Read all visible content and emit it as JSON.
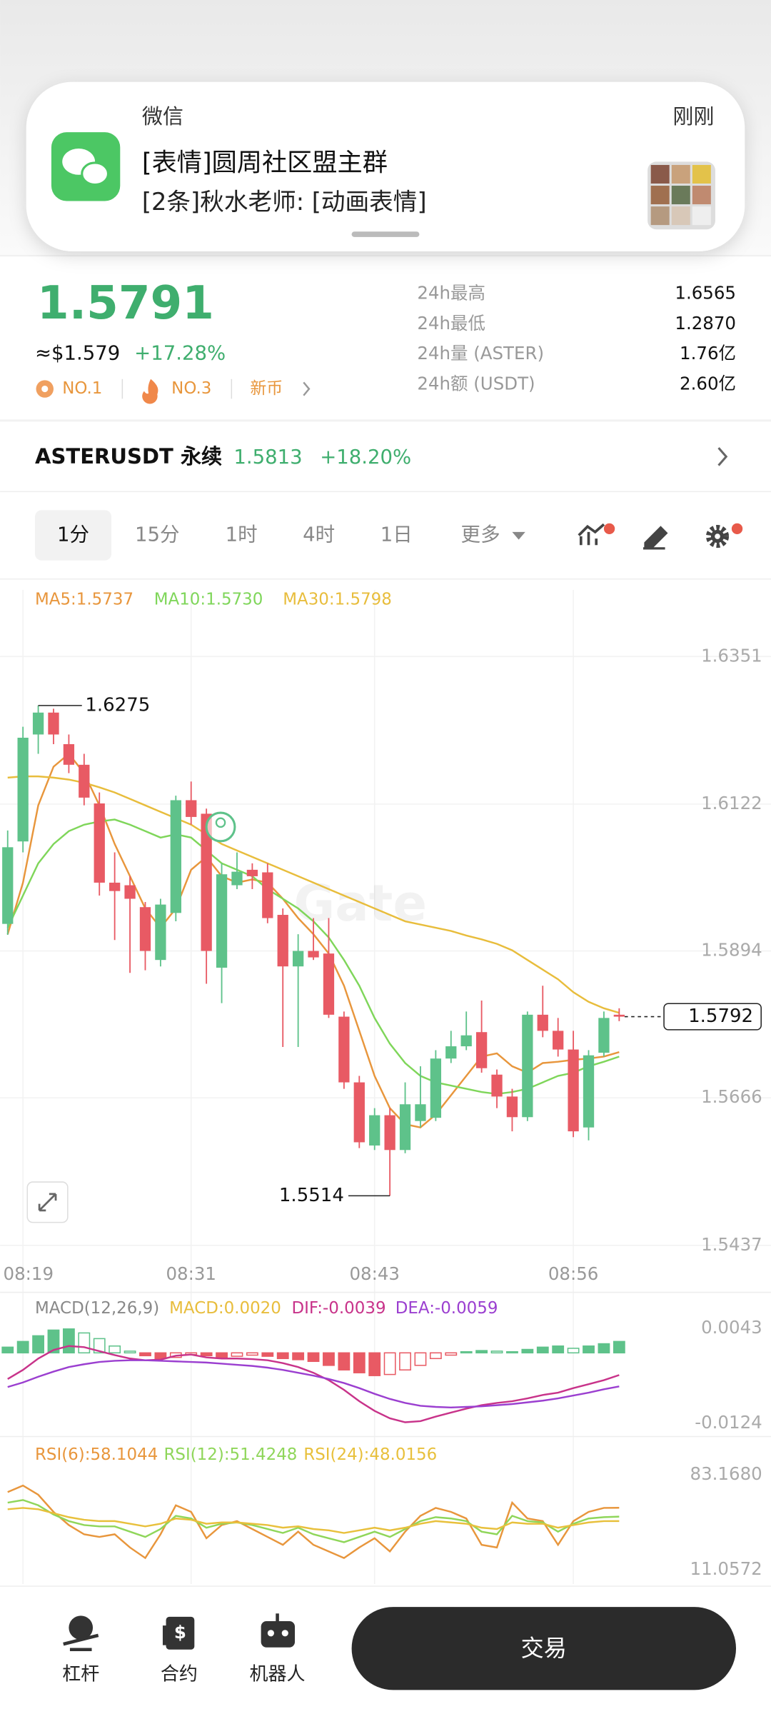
{
  "notification": {
    "app": "微信",
    "time": "刚刚",
    "title": "[表情]圆周社区盟主群",
    "message": "[2条]秋水老师: [动画表情]"
  },
  "ticker": {
    "price": "1.5791",
    "usd": "≈$1.579",
    "change": "+17.28%",
    "badges": [
      "NO.1",
      "NO.3",
      "新币"
    ],
    "stats": [
      {
        "label": "24h最高",
        "value": "1.6565"
      },
      {
        "label": "24h最低",
        "value": "1.2870"
      },
      {
        "label": "24h量 (ASTER)",
        "value": "1.76亿"
      },
      {
        "label": "24h额 (USDT)",
        "value": "2.60亿"
      }
    ]
  },
  "perpetual": {
    "name": "ASTERUSDT 永续",
    "price": "1.5813",
    "change": "+18.20%"
  },
  "timeframes": [
    "1分",
    "15分",
    "1时",
    "4时",
    "1日",
    "更多"
  ],
  "chart_data": [
    {
      "type": "candlestick",
      "legend": [
        "MA5:1.5737",
        "MA10:1.5730",
        "MA30:1.5798"
      ],
      "watermark": "Gate",
      "up_color": "#5ec28a",
      "down_color": "#e85a64",
      "grid": true,
      "ylim": [
        1.5437,
        1.6351
      ],
      "yticks": [
        1.5437,
        1.5666,
        1.5894,
        1.6122,
        1.6351
      ],
      "xticks": [
        {
          "value": 1,
          "label": "08:19"
        },
        {
          "value": 12,
          "label": "08:31"
        },
        {
          "value": 24,
          "label": "08:43"
        },
        {
          "value": 37,
          "label": "08:56"
        }
      ],
      "candles": {
        "open": [
          1.5936,
          1.6064,
          1.623,
          1.6264,
          1.6215,
          1.6183,
          1.6123,
          1.6,
          1.5996,
          1.5962,
          1.588,
          1.5953,
          1.6128,
          1.6107,
          1.5868,
          1.5996,
          1.602,
          1.6016,
          1.595,
          1.587,
          1.5894,
          1.589,
          1.5792,
          1.569,
          1.5592,
          1.5639,
          1.5585,
          1.563,
          1.5635,
          1.5727,
          1.5746,
          1.5768,
          1.5702,
          1.5668,
          1.5636,
          1.5795,
          1.577,
          1.5741,
          1.562,
          1.5736,
          1.5795
        ],
        "high": [
          1.6081,
          1.6242,
          1.6275,
          1.627,
          1.623,
          1.62,
          1.614,
          1.6047,
          1.601,
          1.597,
          1.5975,
          1.6135,
          1.6157,
          1.6115,
          1.603,
          1.6047,
          1.603,
          1.603,
          1.596,
          1.592,
          1.5945,
          1.5945,
          1.58,
          1.57,
          1.565,
          1.565,
          1.569,
          1.5715,
          1.574,
          1.577,
          1.58,
          1.5817,
          1.571,
          1.568,
          1.58,
          1.584,
          1.579,
          1.577,
          1.574,
          1.58,
          1.5805
        ],
        "low": [
          1.5919,
          1.6047,
          1.62,
          1.6215,
          1.617,
          1.612,
          1.598,
          1.5911,
          1.586,
          1.5864,
          1.587,
          1.594,
          1.609,
          1.5843,
          1.5813,
          1.599,
          1.599,
          1.5937,
          1.5745,
          1.5745,
          1.588,
          1.579,
          1.568,
          1.5588,
          1.5585,
          1.5514,
          1.558,
          1.562,
          1.563,
          1.572,
          1.574,
          1.5705,
          1.565,
          1.5614,
          1.563,
          1.576,
          1.573,
          1.5605,
          1.56,
          1.573,
          1.5785
        ],
        "close": [
          1.6055,
          1.6225,
          1.6264,
          1.623,
          1.6183,
          1.6132,
          1.6,
          1.5987,
          1.5975,
          1.5894,
          1.5966,
          1.6128,
          1.6102,
          1.5894,
          1.6013,
          1.6017,
          1.601,
          1.5945,
          1.587,
          1.5894,
          1.5884,
          1.5795,
          1.569,
          1.5597,
          1.5639,
          1.5585,
          1.5656,
          1.5656,
          1.5727,
          1.5746,
          1.5763,
          1.5712,
          1.5668,
          1.5636,
          1.5795,
          1.577,
          1.5741,
          1.5614,
          1.5732,
          1.579,
          1.5792
        ]
      },
      "series": [
        {
          "name": "MA5",
          "color": "#e8963c",
          "values": [
            1.592,
            1.6,
            1.612,
            1.618,
            1.62,
            1.617,
            1.612,
            1.606,
            1.601,
            1.596,
            1.593,
            1.596,
            1.602,
            1.604,
            1.601,
            1.6,
            1.6005,
            1.6,
            1.5975,
            1.5945,
            1.592,
            1.589,
            1.584,
            1.577,
            1.57,
            1.565,
            1.5625,
            1.562,
            1.564,
            1.567,
            1.57,
            1.573,
            1.5735,
            1.5715,
            1.5705,
            1.572,
            1.5722,
            1.5725,
            1.5727,
            1.573,
            1.5737
          ]
        },
        {
          "name": "MA10",
          "color": "#7fd65a",
          "values": [
            1.593,
            1.598,
            1.603,
            1.606,
            1.608,
            1.609,
            1.6095,
            1.6098,
            1.609,
            1.608,
            1.607,
            1.6075,
            1.607,
            1.605,
            1.603,
            1.602,
            1.601,
            1.599,
            1.5975,
            1.596,
            1.594,
            1.5915,
            1.588,
            1.584,
            1.579,
            1.575,
            1.572,
            1.57,
            1.569,
            1.5685,
            1.568,
            1.5675,
            1.5672,
            1.5675,
            1.568,
            1.569,
            1.57,
            1.5705,
            1.5715,
            1.5722,
            1.573
          ]
        },
        {
          "name": "MA30",
          "color": "#e8bd3c",
          "values": [
            1.6163,
            1.6165,
            1.6165,
            1.6163,
            1.616,
            1.6155,
            1.6148,
            1.614,
            1.613,
            1.612,
            1.611,
            1.61,
            1.609,
            1.6075,
            1.606,
            1.605,
            1.604,
            1.603,
            1.602,
            1.601,
            1.6,
            1.599,
            1.598,
            1.597,
            1.596,
            1.595,
            1.594,
            1.5935,
            1.593,
            1.5925,
            1.5918,
            1.5912,
            1.5905,
            1.5895,
            1.588,
            1.5865,
            1.585,
            1.583,
            1.5815,
            1.5805,
            1.5798
          ]
        }
      ]
    },
    {
      "type": "macd",
      "title": "MACD(12,26,9)",
      "legend": [
        "MACD:0.0020",
        "DIF:-0.0039",
        "DEA:-0.0059"
      ],
      "ylim": [
        -0.0124,
        0.0043
      ],
      "yticks": [
        -0.0124,
        0.0043
      ],
      "histogram": {
        "up_color": "#5ec28a",
        "down_color": "#e85a64",
        "values": [
          0.001,
          0.002,
          0.003,
          0.004,
          0.0042,
          0.0035,
          0.0025,
          0.0012,
          0.0003,
          -0.0005,
          -0.001,
          -0.0008,
          -0.0003,
          -0.0005,
          -0.0008,
          -0.0006,
          -0.0004,
          -0.0006,
          -0.001,
          -0.0012,
          -0.0015,
          -0.0022,
          -0.003,
          -0.0035,
          -0.004,
          -0.0038,
          -0.003,
          -0.0022,
          -0.001,
          -0.0004,
          0.0002,
          0.0004,
          0.0003,
          0.0002,
          0.0006,
          0.001,
          0.0012,
          0.0008,
          0.0012,
          0.0016,
          0.002
        ]
      },
      "series": [
        {
          "name": "DIF",
          "color": "#c8338a",
          "values": [
            -0.0046,
            -0.003,
            -0.001,
            0.0005,
            0.0012,
            0.001,
            0.0003,
            -0.0004,
            -0.001,
            -0.0013,
            -0.0012,
            -0.0005,
            -0.0003,
            -0.0008,
            -0.001,
            -0.001,
            -0.0011,
            -0.0013,
            -0.0018,
            -0.0025,
            -0.0035,
            -0.0048,
            -0.0065,
            -0.0085,
            -0.0102,
            -0.0115,
            -0.0122,
            -0.012,
            -0.0112,
            -0.0105,
            -0.0098,
            -0.0092,
            -0.0088,
            -0.0085,
            -0.008,
            -0.0074,
            -0.007,
            -0.0062,
            -0.0055,
            -0.0048,
            -0.0039
          ]
        },
        {
          "name": "DEA",
          "color": "#9b3fd0",
          "values": [
            -0.006,
            -0.0052,
            -0.0042,
            -0.0033,
            -0.0025,
            -0.002,
            -0.0016,
            -0.0014,
            -0.0013,
            -0.0013,
            -0.0014,
            -0.0015,
            -0.0016,
            -0.0017,
            -0.0019,
            -0.0021,
            -0.0023,
            -0.0026,
            -0.003,
            -0.0035,
            -0.004,
            -0.0046,
            -0.0053,
            -0.0062,
            -0.0072,
            -0.0081,
            -0.0088,
            -0.0093,
            -0.0095,
            -0.0096,
            -0.0095,
            -0.0094,
            -0.0092,
            -0.009,
            -0.0087,
            -0.0084,
            -0.008,
            -0.0075,
            -0.007,
            -0.0064,
            -0.0059
          ]
        }
      ]
    },
    {
      "type": "rsi",
      "legend": [
        "RSI(6):58.1044",
        "RSI(12):51.4248",
        "RSI(24):48.0156"
      ],
      "ylim": [
        11.0572,
        83.168
      ],
      "yticks": [
        11.0572,
        {
          "value": 83.168,
          "label": "83.1680"
        }
      ],
      "series": [
        {
          "name": "RSI(6)",
          "color": "#e8963c",
          "values": [
            70,
            75,
            68,
            55,
            45,
            38,
            36,
            38,
            28,
            20,
            38,
            60,
            55,
            35,
            45,
            48,
            42,
            36,
            30,
            40,
            30,
            25,
            20,
            28,
            35,
            25,
            40,
            52,
            58,
            55,
            50,
            30,
            28,
            62,
            50,
            48,
            30,
            48,
            55,
            58,
            58.1044
          ]
        },
        {
          "name": "RSI(12)",
          "color": "#8fd65a",
          "values": [
            62,
            64,
            60,
            53,
            48,
            45,
            44,
            44,
            40,
            36,
            42,
            52,
            50,
            43,
            46,
            47,
            45,
            42,
            39,
            43,
            38,
            35,
            32,
            36,
            40,
            36,
            42,
            48,
            51,
            50,
            48,
            40,
            38,
            52,
            48,
            47,
            40,
            46,
            50,
            51,
            51.4248
          ]
        },
        {
          "name": "RSI(24)",
          "color": "#e8c03c",
          "values": [
            57,
            58,
            57,
            54,
            51,
            49,
            48,
            48,
            46,
            44,
            46,
            50,
            49,
            46,
            47,
            47,
            46,
            45,
            43,
            44,
            42,
            41,
            39,
            41,
            43,
            41,
            43,
            46,
            48,
            47,
            46,
            43,
            42,
            47,
            46,
            46,
            43,
            45,
            47,
            48,
            48.0156
          ]
        }
      ]
    }
  ],
  "nav": {
    "items": [
      "杠杆",
      "合约",
      "机器人"
    ],
    "trade": "交易"
  }
}
